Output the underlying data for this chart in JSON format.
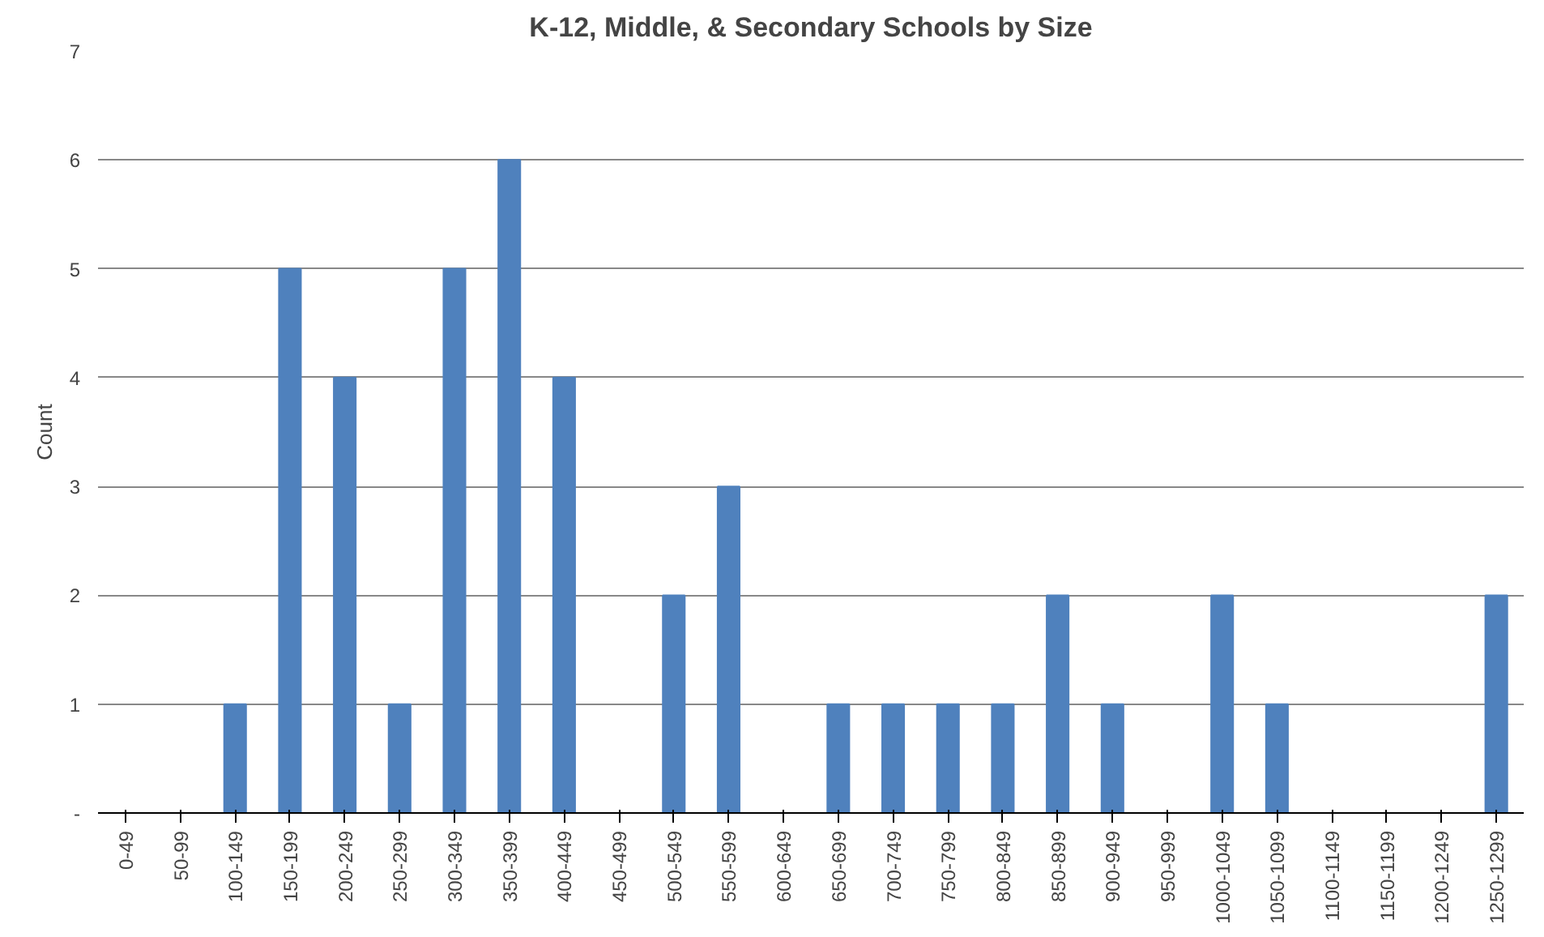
{
  "chart_data": {
    "type": "bar",
    "title": "K-12, Middle, & Secondary Schools by Size",
    "ylabel": "Count",
    "categories": [
      "0-49",
      "50-99",
      "100-149",
      "150-199",
      "200-249",
      "250-299",
      "300-349",
      "350-399",
      "400-449",
      "450-499",
      "500-549",
      "550-599",
      "600-649",
      "650-699",
      "700-749",
      "750-799",
      "800-849",
      "850-899",
      "900-949",
      "950-999",
      "1000-1049",
      "1050-1099",
      "1100-1149",
      "1150-1199",
      "1200-1249",
      "1250-1299"
    ],
    "values": [
      0,
      0,
      1,
      5,
      4,
      1,
      5,
      6,
      4,
      0,
      2,
      3,
      0,
      1,
      1,
      1,
      1,
      2,
      1,
      0,
      2,
      1,
      0,
      0,
      0,
      2
    ],
    "color": "#4f81bd",
    "ylim": [
      0,
      7
    ],
    "yticks": [
      {
        "value": 0,
        "label": "-"
      },
      1,
      2,
      3,
      4,
      5,
      6,
      7
    ],
    "grid": "y"
  }
}
